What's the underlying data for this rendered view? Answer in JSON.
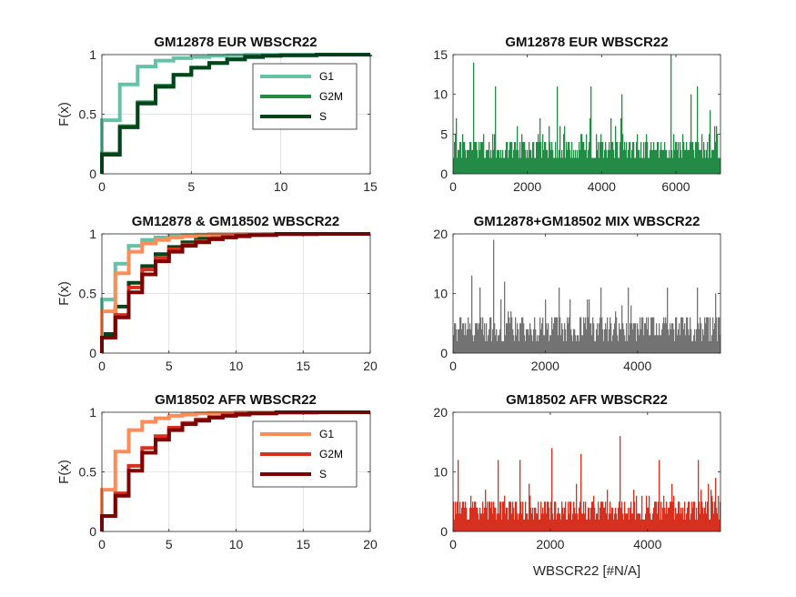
{
  "chart_data": [
    {
      "panel": "top-left",
      "type": "line",
      "subtype": "ecdf-stairs",
      "title": "GM12878 EUR WBSCR22",
      "xlabel": "",
      "ylabel": "F(x)",
      "xlim": [
        0,
        15
      ],
      "ylim": [
        0,
        1
      ],
      "xticks": [
        0,
        5,
        10,
        15
      ],
      "yticks": [
        0,
        0.5,
        1
      ],
      "grid": true,
      "legend": {
        "position": "top-right",
        "entries": [
          "G1",
          "G2M",
          "S"
        ]
      },
      "series": [
        {
          "name": "G1",
          "color": "#66c2a4",
          "x": [
            0,
            1,
            2,
            3,
            4,
            5,
            6,
            7,
            8,
            12,
            15
          ],
          "y": [
            0.45,
            0.75,
            0.9,
            0.95,
            0.97,
            0.98,
            0.99,
            0.995,
            0.998,
            1.0,
            1.0
          ]
        },
        {
          "name": "G2M",
          "color": "#238b45",
          "x": [
            0,
            1,
            2,
            3,
            4,
            5,
            6,
            7,
            8,
            9,
            10,
            12,
            15
          ],
          "y": [
            0.17,
            0.4,
            0.6,
            0.74,
            0.83,
            0.89,
            0.93,
            0.96,
            0.98,
            0.99,
            0.995,
            0.999,
            1.0
          ]
        },
        {
          "name": "S",
          "color": "#00441b",
          "x": [
            0,
            1,
            2,
            3,
            4,
            5,
            6,
            7,
            8,
            9,
            10,
            12
          ],
          "y": [
            0.16,
            0.39,
            0.59,
            0.73,
            0.83,
            0.89,
            0.93,
            0.96,
            0.98,
            0.99,
            0.995,
            1.0
          ]
        }
      ]
    },
    {
      "panel": "top-right",
      "type": "bar",
      "title": "GM12878 EUR WBSCR22",
      "xlabel": "",
      "ylabel": "",
      "xlim": [
        0,
        7200
      ],
      "ylim": [
        0,
        15
      ],
      "xticks": [
        0,
        2000,
        4000,
        6000
      ],
      "yticks": [
        0,
        5,
        10,
        15
      ],
      "grid": false,
      "color": "#238b45",
      "n_bars": 7200,
      "baseline_max": 4,
      "peaks": [
        [
          540,
          14
        ],
        [
          5870,
          15
        ],
        [
          1140,
          11
        ],
        [
          2800,
          11
        ],
        [
          3720,
          11
        ],
        [
          4540,
          10
        ],
        [
          6400,
          10
        ],
        [
          6570,
          11
        ],
        [
          6930,
          8
        ]
      ]
    },
    {
      "panel": "middle-left",
      "type": "line",
      "subtype": "ecdf-stairs",
      "title": "GM12878 & GM18502 WBSCR22",
      "xlabel": "",
      "ylabel": "F(x)",
      "xlim": [
        0,
        20
      ],
      "ylim": [
        0,
        1
      ],
      "xticks": [
        0,
        5,
        10,
        15,
        20
      ],
      "yticks": [
        0,
        0.5,
        1
      ],
      "grid": true,
      "series": [
        {
          "color": "#66c2a4",
          "x": [
            0,
            1,
            2,
            3,
            4,
            5,
            6,
            7,
            8,
            12
          ],
          "y": [
            0.45,
            0.75,
            0.9,
            0.95,
            0.97,
            0.98,
            0.99,
            0.995,
            0.998,
            1.0
          ]
        },
        {
          "color": "#00441b",
          "x": [
            0,
            1,
            2,
            3,
            4,
            5,
            6,
            7,
            8,
            10,
            12
          ],
          "y": [
            0.16,
            0.39,
            0.59,
            0.73,
            0.83,
            0.89,
            0.93,
            0.96,
            0.98,
            0.99,
            1.0
          ]
        },
        {
          "color": "#fc8d59",
          "x": [
            0,
            1,
            2,
            3,
            4,
            5,
            6,
            7,
            8,
            10,
            13
          ],
          "y": [
            0.35,
            0.67,
            0.85,
            0.92,
            0.95,
            0.97,
            0.98,
            0.99,
            0.995,
            0.999,
            1.0
          ]
        },
        {
          "color": "#d7301f",
          "x": [
            0,
            1,
            2,
            3,
            4,
            5,
            6,
            7,
            8,
            9,
            10,
            11,
            13,
            16
          ],
          "y": [
            0.13,
            0.32,
            0.55,
            0.7,
            0.8,
            0.87,
            0.91,
            0.94,
            0.96,
            0.975,
            0.985,
            0.99,
            0.997,
            1.0
          ]
        },
        {
          "color": "#7f0000",
          "x": [
            0,
            1,
            2,
            3,
            4,
            5,
            6,
            7,
            8,
            9,
            10,
            11,
            13
          ],
          "y": [
            0.13,
            0.3,
            0.51,
            0.66,
            0.77,
            0.85,
            0.9,
            0.93,
            0.955,
            0.97,
            0.98,
            0.99,
            1.0
          ]
        }
      ]
    },
    {
      "panel": "middle-right",
      "type": "bar",
      "title": "GM12878+GM18502 MIX WBSCR22",
      "xlabel": "",
      "ylabel": "",
      "xlim": [
        0,
        5800
      ],
      "ylim": [
        0,
        20
      ],
      "xticks": [
        0,
        2000,
        4000
      ],
      "yticks": [
        0,
        10,
        20
      ],
      "grid": false,
      "color": "#737373",
      "n_bars": 5800,
      "baseline_max": 6,
      "peaks": [
        [
          880,
          19
        ],
        [
          400,
          13
        ],
        [
          580,
          11
        ],
        [
          1120,
          12
        ],
        [
          2300,
          11
        ],
        [
          3210,
          11
        ],
        [
          3800,
          11
        ],
        [
          4650,
          11
        ],
        [
          5300,
          11
        ],
        [
          5700,
          10
        ]
      ]
    },
    {
      "panel": "bottom-left",
      "type": "line",
      "subtype": "ecdf-stairs",
      "title": "GM18502 AFR WBSCR22",
      "xlabel": "",
      "ylabel": "F(x)",
      "xlim": [
        0,
        20
      ],
      "ylim": [
        0,
        1
      ],
      "xticks": [
        0,
        5,
        10,
        15,
        20
      ],
      "yticks": [
        0,
        0.5,
        1
      ],
      "grid": true,
      "legend": {
        "position": "top-right",
        "entries": [
          "G1",
          "G2M",
          "S"
        ]
      },
      "series": [
        {
          "name": "G1",
          "color": "#fc8d59",
          "x": [
            0,
            1,
            2,
            3,
            4,
            5,
            6,
            7,
            8,
            10,
            13
          ],
          "y": [
            0.35,
            0.67,
            0.85,
            0.92,
            0.95,
            0.97,
            0.98,
            0.99,
            0.995,
            0.999,
            1.0
          ]
        },
        {
          "name": "G2M",
          "color": "#d7301f",
          "x": [
            0,
            1,
            2,
            3,
            4,
            5,
            6,
            7,
            8,
            9,
            10,
            11,
            13,
            16
          ],
          "y": [
            0.13,
            0.32,
            0.55,
            0.7,
            0.8,
            0.87,
            0.91,
            0.94,
            0.96,
            0.975,
            0.985,
            0.99,
            0.997,
            1.0
          ]
        },
        {
          "name": "S",
          "color": "#7f0000",
          "x": [
            0,
            1,
            2,
            3,
            4,
            5,
            6,
            7,
            8,
            9,
            10,
            11,
            13
          ],
          "y": [
            0.13,
            0.3,
            0.51,
            0.66,
            0.77,
            0.85,
            0.9,
            0.93,
            0.955,
            0.97,
            0.98,
            0.99,
            1.0
          ]
        }
      ]
    },
    {
      "panel": "bottom-right",
      "type": "bar",
      "title": "GM18502 AFR WBSCR22",
      "xlabel": "WBSCR22 [#N/A]",
      "ylabel": "",
      "xlim": [
        0,
        5500
      ],
      "ylim": [
        0,
        20
      ],
      "xticks": [
        0,
        2000,
        4000
      ],
      "yticks": [
        0,
        10,
        20
      ],
      "grid": false,
      "color": "#d7301f",
      "n_bars": 5500,
      "baseline_max": 5,
      "peaks": [
        [
          100,
          12
        ],
        [
          920,
          12
        ],
        [
          1380,
          12
        ],
        [
          2030,
          14
        ],
        [
          2620,
          13
        ],
        [
          3430,
          16
        ],
        [
          4240,
          12
        ],
        [
          5050,
          12
        ],
        [
          5400,
          9
        ]
      ]
    }
  ]
}
